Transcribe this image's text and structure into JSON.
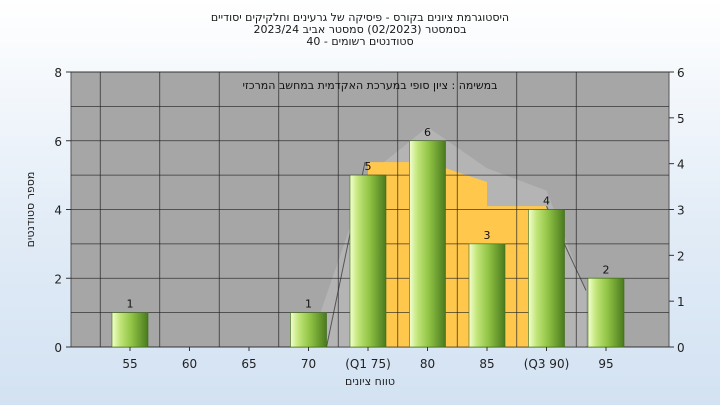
{
  "chart_data": {
    "type": "bar",
    "title_lines": [
      "היסטוגרמת ציונים בקורס - פיסיקה של גרעינים וחלקיקים יסודיים",
      "בסמסטר (02/2023) סמסטר אביב 2023/24",
      "סטודנטים רשומים - 40"
    ],
    "annotation": "במשימה : ציון סופי במערכת האקדמית במחשב המרכזי",
    "xlabel": "טווח ציונים",
    "ylabel": "מספר סטודנטים",
    "categories": [
      "55",
      "60",
      "65",
      "70",
      "(Q1 75)",
      "80",
      "85",
      "(Q3 90)",
      "95"
    ],
    "values": [
      1,
      0,
      0,
      1,
      5,
      6,
      3,
      4,
      2
    ],
    "value_labels": [
      "1",
      "",
      "",
      "1",
      "5",
      "6",
      "3",
      "4",
      "2"
    ],
    "ylim": [
      0,
      8
    ],
    "y_ticks": [
      "0",
      "2",
      "4",
      "6",
      "8"
    ],
    "y2lim": [
      0,
      6
    ],
    "y2_ticks": [
      "0",
      "1",
      "2",
      "3",
      "4",
      "5",
      "6"
    ],
    "interquartile_band": {
      "from": "(Q1 75)",
      "to": "(Q3 90)",
      "levels": [
        5,
        5,
        4,
        4
      ],
      "color": "#ffc84d"
    },
    "whisker_band_color": "#b4b4b4",
    "plot_background": "#a6a6a6",
    "bar_color": "#8fc244",
    "grid": true,
    "legend": "none"
  }
}
